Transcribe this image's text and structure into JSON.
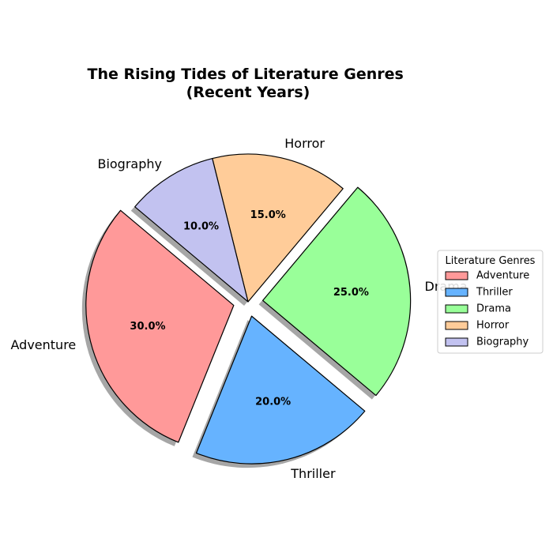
{
  "chart_data": {
    "type": "pie",
    "title": "The Rising Tides of Literature Genres\n(Recent Years)",
    "legend_title": "Literature Genres",
    "legend_position": "center-right",
    "slices": [
      {
        "label": "Adventure",
        "value": 30.0,
        "percent_label": "30.0%",
        "color": "#ff9999",
        "exploded": true
      },
      {
        "label": "Thriller",
        "value": 20.0,
        "percent_label": "20.0%",
        "color": "#66b3ff",
        "exploded": true
      },
      {
        "label": "Drama",
        "value": 25.0,
        "percent_label": "25.0%",
        "color": "#99ff99",
        "exploded": true
      },
      {
        "label": "Horror",
        "value": 15.0,
        "percent_label": "15.0%",
        "color": "#ffcc99",
        "exploded": false
      },
      {
        "label": "Biography",
        "value": 10.0,
        "percent_label": "10.0%",
        "color": "#c2c2f0",
        "exploded": false
      }
    ],
    "start_angle_deg": 140,
    "direction": "counterclockwise",
    "shadow": true
  }
}
